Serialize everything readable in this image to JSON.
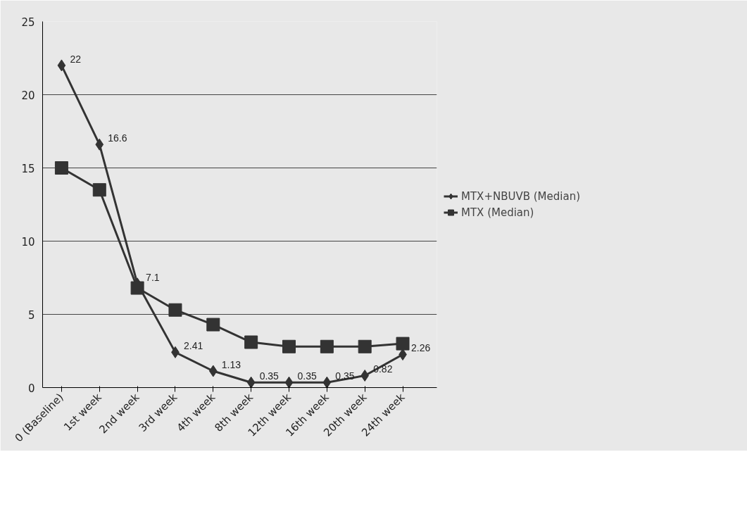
{
  "chart_data": {
    "type": "line",
    "categories": [
      "0 (Baseline)",
      "1st week",
      "2nd week",
      "3rd week",
      "4th week",
      "8th week",
      "12th week",
      "16th week",
      "20th week",
      "24th week"
    ],
    "series": [
      {
        "name": "MTX+NBUVB (Median)",
        "color": "#333333",
        "marker": "diamond",
        "values": [
          22,
          16.6,
          7.1,
          2.41,
          1.13,
          0.35,
          0.35,
          0.35,
          0.82,
          2.26
        ],
        "value_labels": [
          "22",
          "16.6",
          "7.1",
          "2.41",
          "1.13",
          "0.35",
          "0.35",
          "0.35",
          "0.82",
          "2.26"
        ]
      },
      {
        "name": "MTX (Median)",
        "color": "#333333",
        "marker": "square",
        "values": [
          15,
          13.5,
          6.8,
          5.3,
          4.3,
          3.1,
          2.8,
          2.8,
          2.8,
          3.0
        ]
      }
    ],
    "ylim": [
      0,
      25
    ],
    "yticks": [
      0,
      5,
      10,
      15,
      20,
      25
    ],
    "grid": "y",
    "legend": "right"
  }
}
